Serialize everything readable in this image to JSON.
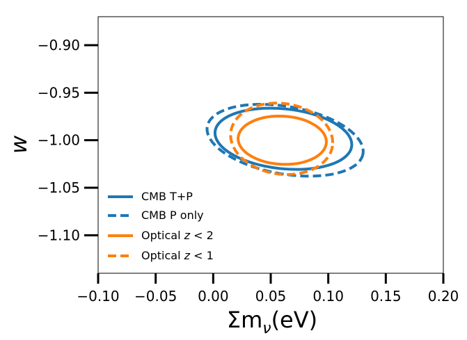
{
  "chart_data": {
    "type": "contour",
    "title": "",
    "xlabel": "Σm",
    "xlabel_sub": "ν",
    "xlabel_unit": "(eV)",
    "ylabel": "w",
    "xlim": [
      -0.1,
      0.2
    ],
    "ylim": [
      -1.14,
      -0.87
    ],
    "xticks": [
      -0.1,
      -0.05,
      0.0,
      0.05,
      0.1,
      0.15,
      0.2
    ],
    "xtick_labels": [
      "−0.10",
      "−0.05",
      "0.00",
      "0.05",
      "0.10",
      "0.15",
      "0.20"
    ],
    "yticks": [
      -0.9,
      -0.95,
      -1.0,
      -1.05,
      -1.1
    ],
    "ytick_labels": [
      "−0.90",
      "−0.95",
      "−1.00",
      "−1.05",
      "−1.10"
    ],
    "grid": false,
    "legend_position": "lower-left",
    "series": [
      {
        "name": "CMB T+P",
        "label_parts": [
          "CMB T+P"
        ],
        "color": "#1f77b4",
        "linestyle": "solid",
        "ellipse": {
          "center": [
            0.061,
            -0.9985
          ],
          "semi_axis_x": 0.0597,
          "semi_axis_y": 0.0315,
          "tilt_deg": 6
        }
      },
      {
        "name": "CMB P only",
        "label_parts": [
          "CMB P only"
        ],
        "color": "#1f77b4",
        "linestyle": "dashed",
        "ellipse": {
          "center": [
            0.0625,
            -1.0
          ],
          "semi_axis_x": 0.0687,
          "semi_axis_y": 0.0355,
          "tilt_deg": 10
        }
      },
      {
        "name": "Optical z < 2",
        "label_parts": [
          "Optical ",
          "z",
          " < 2"
        ],
        "color": "#ff7f0e",
        "linestyle": "solid",
        "ellipse": {
          "center": [
            0.06,
            -1.0
          ],
          "semi_axis_x": 0.0384,
          "semi_axis_y": 0.0253,
          "tilt_deg": 3
        }
      },
      {
        "name": "Optical z < 1",
        "label_parts": [
          "Optical ",
          "z",
          " < 1"
        ],
        "color": "#ff7f0e",
        "linestyle": "dashed",
        "ellipse": {
          "center": [
            0.0595,
            -0.9985
          ],
          "semi_axis_x": 0.0446,
          "semi_axis_y": 0.0372,
          "tilt_deg": 8
        }
      }
    ]
  }
}
